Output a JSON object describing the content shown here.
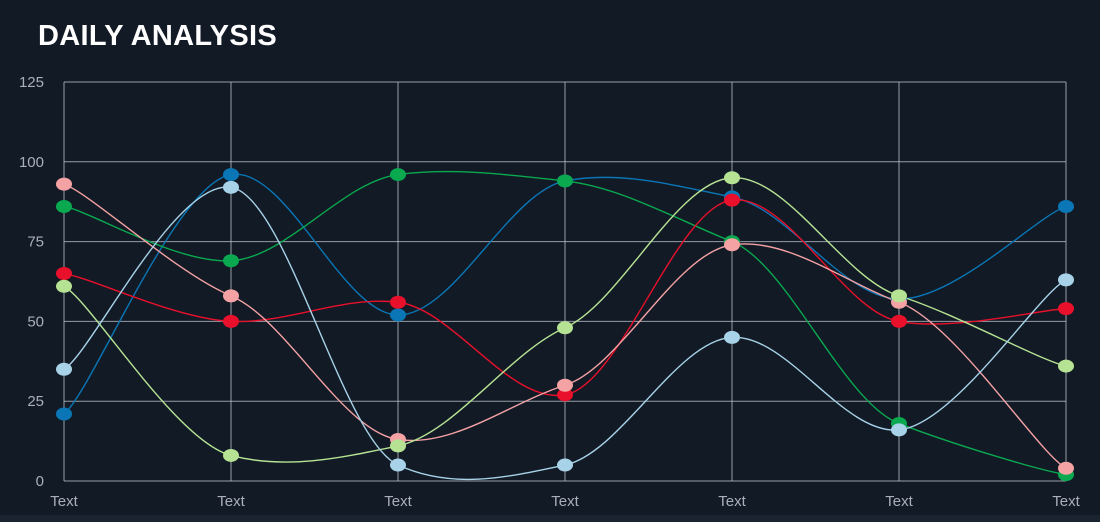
{
  "title": "DAILY ANALYSIS",
  "colors": {
    "background": "#121a26",
    "grid": "#c4c9d0",
    "tick_text": "#a9b0ba",
    "title_text": "#ffffff"
  },
  "chart_data": {
    "type": "line",
    "title": "DAILY ANALYSIS",
    "xlabel": "",
    "ylabel": "",
    "categories": [
      "Text",
      "Text",
      "Text",
      "Text",
      "Text",
      "Text",
      "Text"
    ],
    "ylim": [
      0,
      125
    ],
    "yticks": [
      0,
      25,
      50,
      75,
      100,
      125
    ],
    "grid": true,
    "curve": "smooth",
    "series": [
      {
        "color": "#0a76b5",
        "values": [
          21,
          96,
          52,
          94,
          89,
          57,
          86
        ]
      },
      {
        "color": "#0aa84f",
        "values": [
          86,
          69,
          96,
          94,
          75,
          18,
          2
        ]
      },
      {
        "color": "#e8102a",
        "values": [
          65,
          50,
          56,
          27,
          88,
          50,
          54
        ]
      },
      {
        "color": "#f4a2a4",
        "values": [
          93,
          58,
          13,
          30,
          74,
          56,
          4
        ]
      },
      {
        "color": "#b6e393",
        "values": [
          61,
          8,
          11,
          48,
          95,
          58,
          36
        ]
      },
      {
        "color": "#a7d2e8",
        "values": [
          35,
          92,
          5,
          5,
          45,
          16,
          63
        ]
      }
    ]
  }
}
